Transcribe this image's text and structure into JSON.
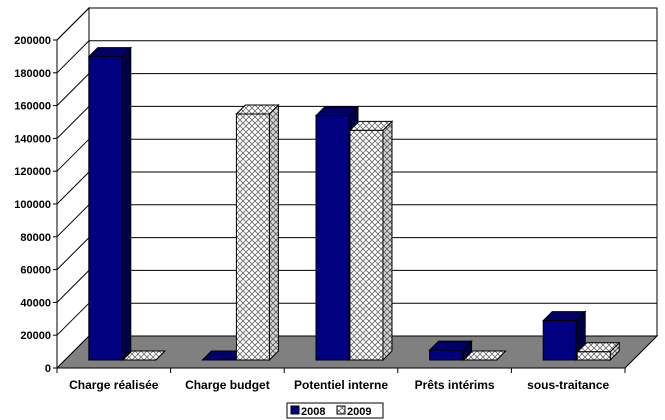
{
  "chart_data": {
    "type": "bar",
    "categories": [
      "Charge réalisée",
      "Charge budget",
      "Potentiel interne",
      "Prêts intérims",
      "sous-traitance"
    ],
    "series": [
      {
        "name": "2008",
        "values": [
          185000,
          0,
          149000,
          6000,
          24000
        ],
        "color": "#000080",
        "pattern": "solid"
      },
      {
        "name": "2009",
        "values": [
          0,
          150000,
          140000,
          0,
          5000
        ],
        "color": "#ffffff",
        "pattern": "crosshatch"
      }
    ],
    "ylim": [
      0,
      200000
    ],
    "ytick_step": 20000,
    "yticks": [
      "0",
      "20000",
      "40000",
      "60000",
      "80000",
      "100000",
      "120000",
      "140000",
      "160000",
      "180000",
      "200000"
    ],
    "grid": true,
    "legend_position": "bottom",
    "floor_color": "#808080",
    "title": "",
    "xlabel": "",
    "ylabel": ""
  }
}
